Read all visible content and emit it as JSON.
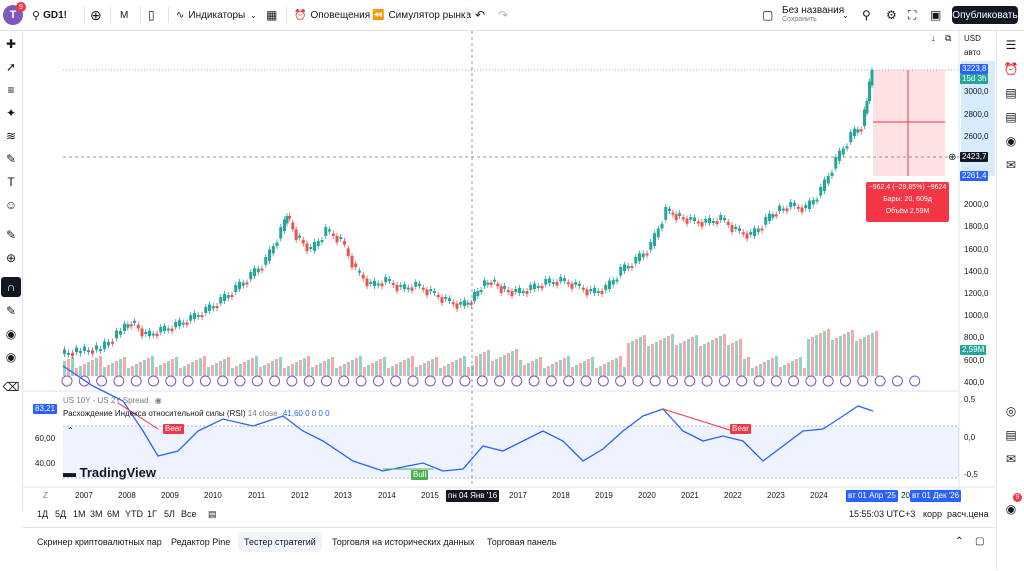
{
  "topbar": {
    "avatar_letter": "T",
    "avatar_badge": "9",
    "symbol": "GD1!",
    "interval": "M",
    "indicators": "Индикаторы",
    "alerts": "Оповещения",
    "replay": "Симулятор рынка",
    "layout_name": "Без названия",
    "layout_status": "Сохранить",
    "publish": "Опубликовать"
  },
  "legend": {
    "spread": "US 10Y - US 2Y Spread",
    "rsi_title": "Расхождение Индекса относительной силы (RSI)",
    "rsi_params": "14 close",
    "rsi_values": "41,60  0  0  0  0",
    "rsi_badge": "83,21",
    "bear1": "Bear",
    "bear2": "Bear",
    "bull": "Bull",
    "logo": "TradingView"
  },
  "price_axis": {
    "currency": "USD",
    "mode": "авто",
    "ticks": [
      "3000,0",
      "2800,0",
      "2600,0",
      "2000,0",
      "1800,0",
      "1600,0",
      "1400,0",
      "1200,0",
      "1000,0",
      "800,0",
      "600,0",
      "400,0"
    ],
    "last_price": "3223,8",
    "countdown": "15d 3h",
    "crosshair_price": "2423,7",
    "measure_low": "2261,4",
    "volume_value": "2,59M"
  },
  "rsi_axis": {
    "ticks": [
      "0,5",
      "0,0",
      "-0,5"
    ]
  },
  "rsi_left_ticks": [
    "60,00",
    "40,00"
  ],
  "measure": {
    "line1": "−962,4 (−29,85%) −9624",
    "line2": "Бары: 20, 609д",
    "line3": "Объём 2,59M"
  },
  "time_axis": {
    "years": [
      "2007",
      "2008",
      "2009",
      "2010",
      "2011",
      "2012",
      "2013",
      "2014",
      "2015",
      "2017",
      "2018",
      "2019",
      "2020",
      "2021",
      "2022",
      "2023",
      "2024"
    ],
    "cursor_date": "пн 04 Янв '16",
    "range_start": "вт 01 Апр '25",
    "range_end": "вт 01 Дек '26",
    "range_mid": "20"
  },
  "bottom_nav": {
    "ranges": [
      "1Д",
      "5Д",
      "1М",
      "3М",
      "6М",
      "YTD",
      "1Г",
      "5Л",
      "Все"
    ],
    "clock": "15:55:03 UTC+3",
    "adj": "корр",
    "calc": "расч.цена"
  },
  "tabs": [
    "Скринер криптовалютных пар",
    "Редактор Pine",
    "Тестер стратегий",
    "Торговля на исторических данных",
    "Торговая панель"
  ],
  "colors": {
    "up": "#26a69a",
    "down": "#ef5350",
    "blue": "#2962ff",
    "rsi": "#2962ff"
  }
}
